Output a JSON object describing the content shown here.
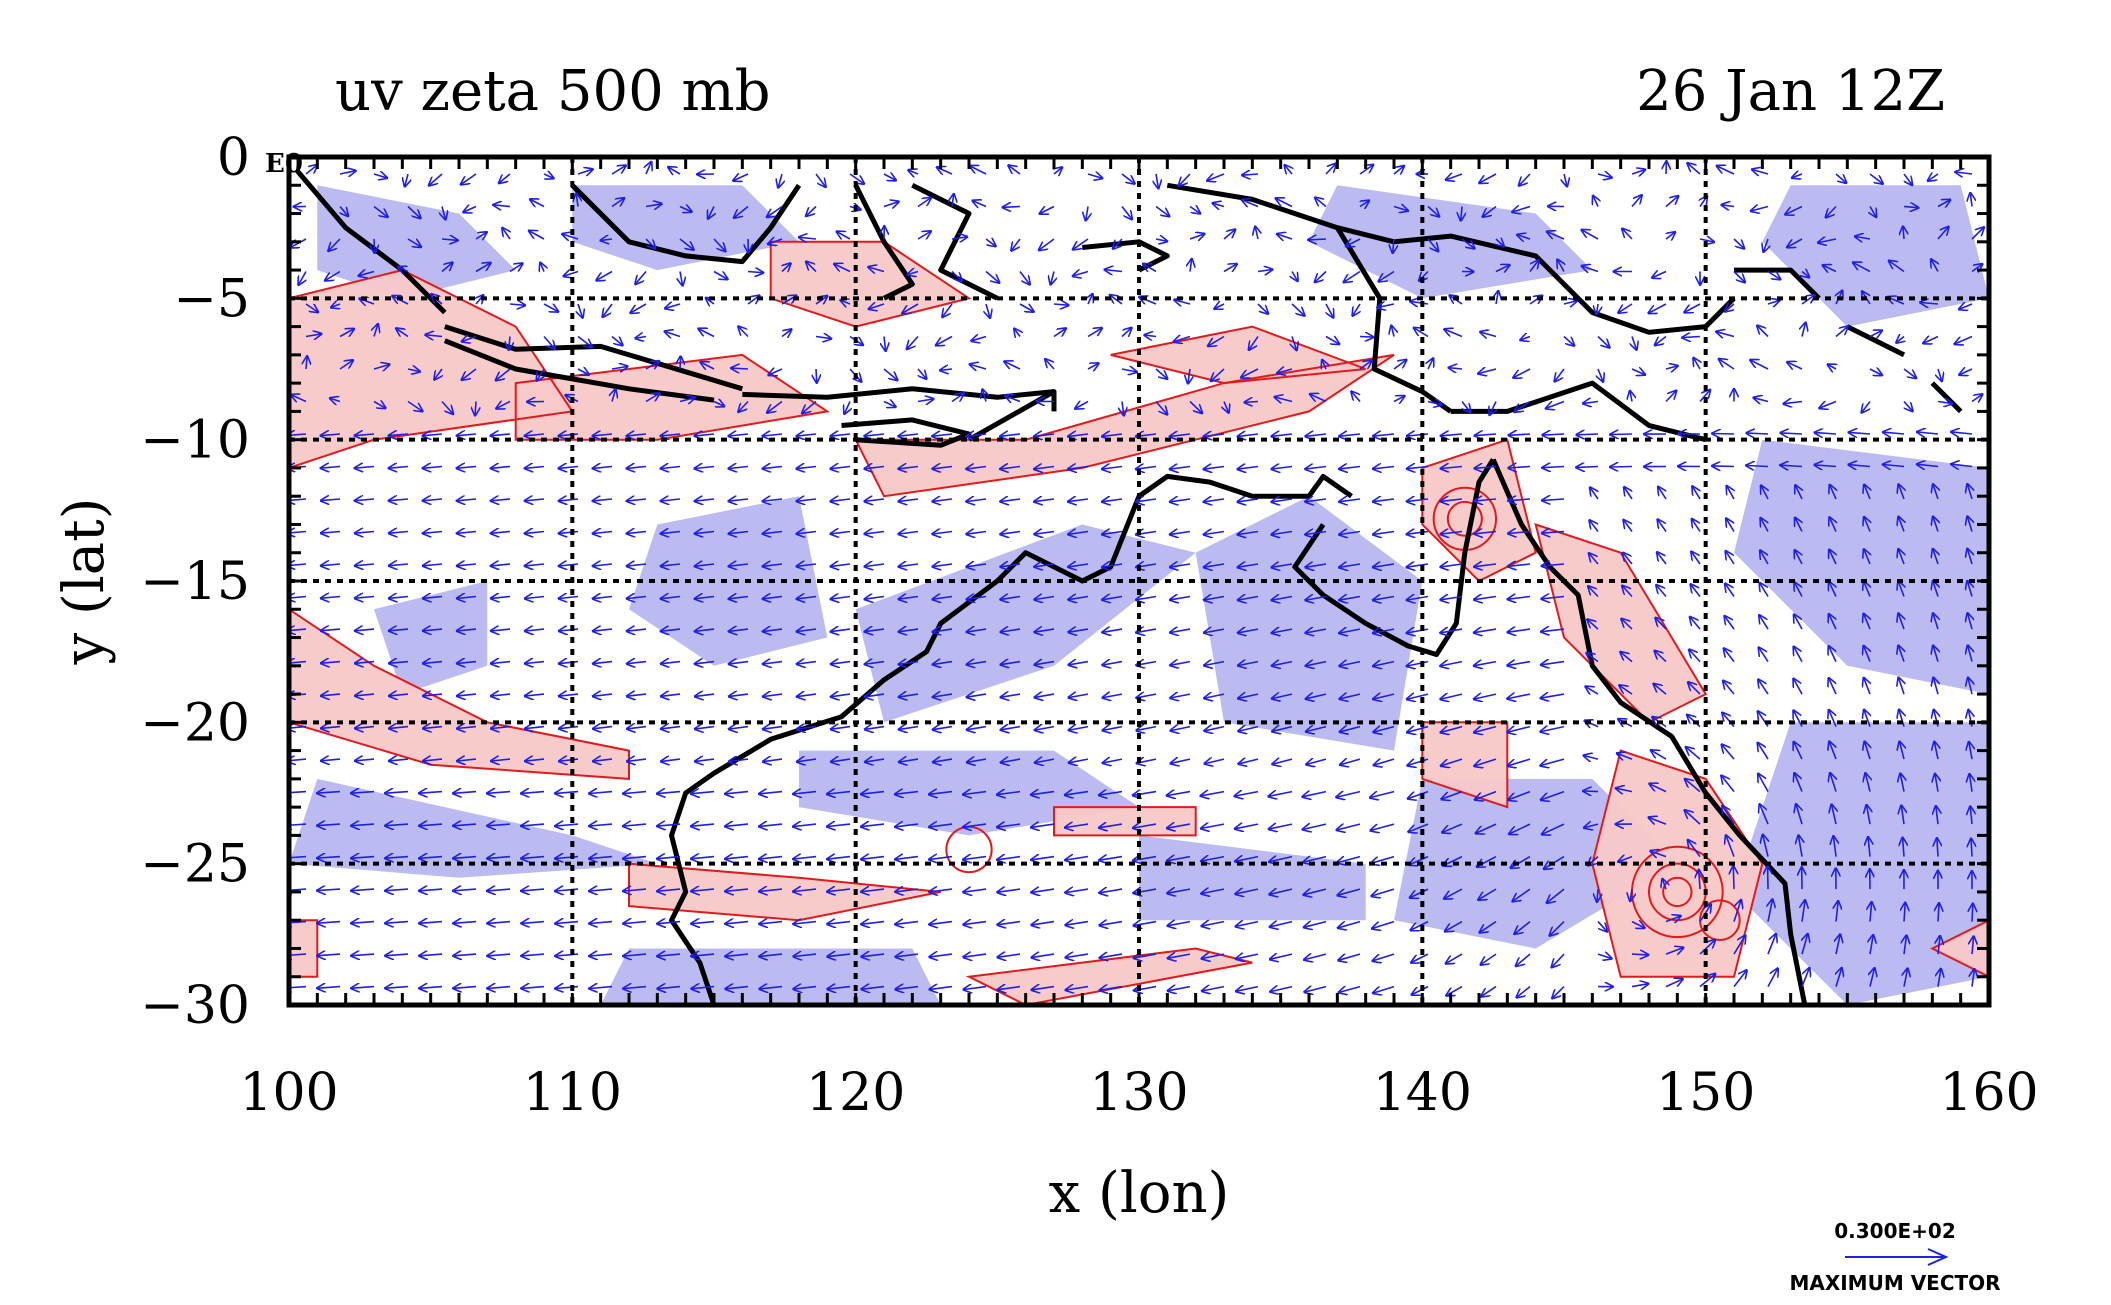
{
  "chart_data": {
    "type": "map",
    "title": "uv zeta 500 mb",
    "timestamp": "26 Jan 12Z",
    "xlabel": "x (lon)",
    "ylabel": "y (lat)",
    "xlim": [
      100,
      160
    ],
    "ylim": [
      -30,
      0
    ],
    "x_ticks": [
      100,
      110,
      120,
      130,
      140,
      150,
      160
    ],
    "y_ticks": [
      0,
      -5,
      -10,
      -15,
      -20,
      -25,
      -30
    ],
    "x_tick_labels": [
      "100",
      "110",
      "120",
      "130",
      "140",
      "150",
      "160"
    ],
    "y_tick_labels": [
      "0",
      "−5",
      "−10",
      "−15",
      "−20",
      "−25",
      "−30"
    ],
    "corner_label": "E0",
    "grid": true,
    "grid_style": "dashed",
    "fields": {
      "vectors": {
        "name": "uv wind",
        "color": "#1f1fe6"
      },
      "positive_vorticity": {
        "fill": "#f8c8c8",
        "contour": "#e31a1c"
      },
      "negative_vorticity": {
        "fill": "#b4b4f0"
      },
      "coastline": {
        "color": "#000000"
      }
    },
    "legend": {
      "placement": "bottom-right",
      "value_label": "0.300E+02",
      "caption": "MAXIMUM VECTOR"
    }
  }
}
